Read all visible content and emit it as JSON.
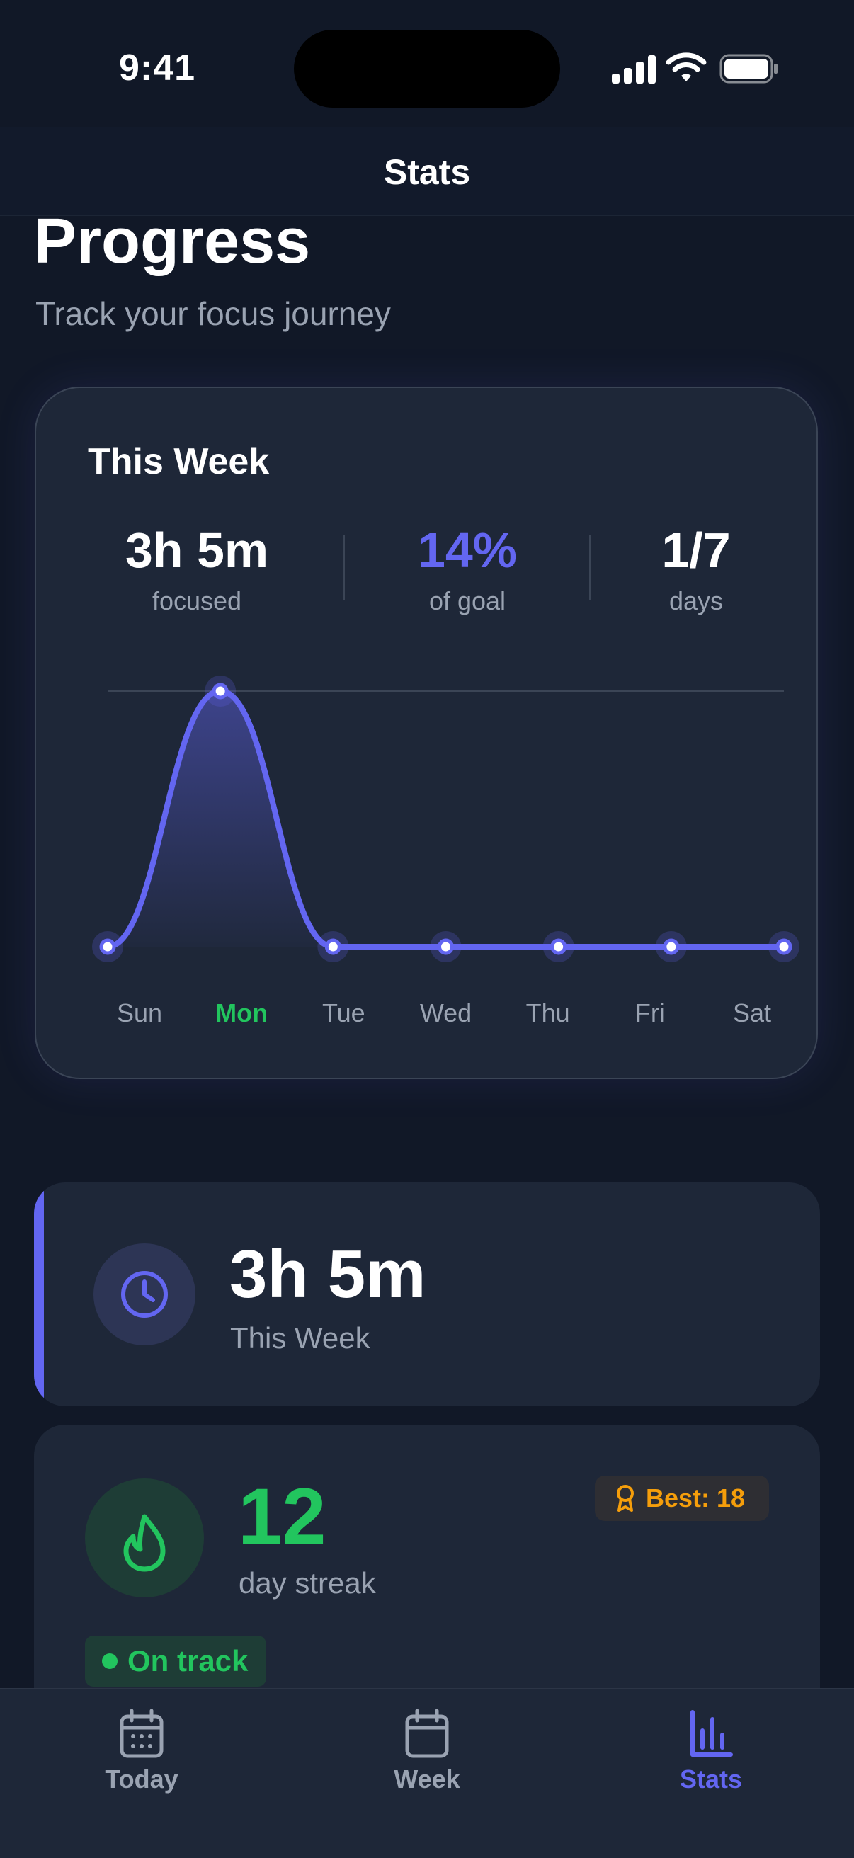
{
  "status_bar": {
    "time": "9:41"
  },
  "nav": {
    "title": "Stats"
  },
  "header": {
    "title": "Progress",
    "subtitle": "Track your focus journey"
  },
  "week_card": {
    "title": "This Week",
    "stats": [
      {
        "value": "3h 5m",
        "label": "focused"
      },
      {
        "value": "14%",
        "label": "of goal"
      },
      {
        "value": "1/7",
        "label": "days"
      }
    ],
    "chart_data": {
      "type": "area",
      "categories": [
        "Sun",
        "Mon",
        "Tue",
        "Wed",
        "Thu",
        "Fri",
        "Sat"
      ],
      "series": [
        {
          "values": [
            0,
            185,
            0,
            0,
            0,
            0,
            0
          ]
        }
      ],
      "highlight_category": "Mon",
      "grid": "top reference line",
      "colors": {
        "line": "#6366f1",
        "highlight_label": "#22c55e"
      }
    }
  },
  "total_card": {
    "value": "3h 5m",
    "label": "This Week",
    "icon": "clock-icon"
  },
  "streak_card": {
    "value": "12",
    "label": "day streak",
    "best": "Best: 18",
    "status": "On track",
    "icon": "flame-icon"
  },
  "tab_bar": {
    "tabs": [
      {
        "label": "Today",
        "icon": "calendar-grid-icon",
        "active": false
      },
      {
        "label": "Week",
        "icon": "calendar-icon",
        "active": false
      },
      {
        "label": "Stats",
        "icon": "bar-chart-icon",
        "active": true
      }
    ]
  },
  "colors": {
    "background": "#111827",
    "card": "#1e2738",
    "accent": "#6366f1",
    "success": "#22c55e",
    "warning": "#f59e0b",
    "muted": "#9aa3b2"
  }
}
